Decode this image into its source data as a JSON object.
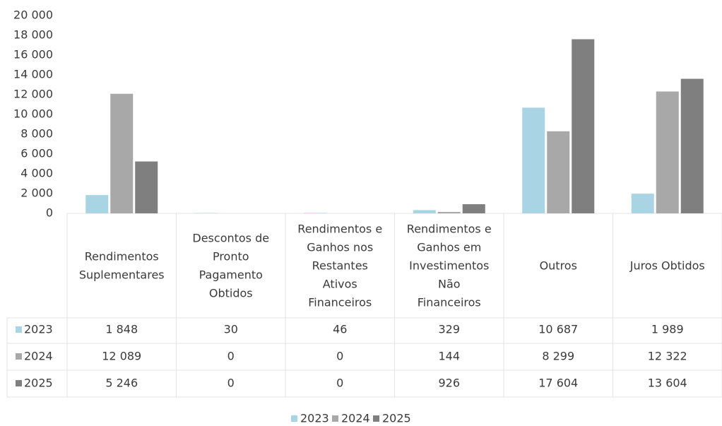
{
  "chart_data": {
    "type": "bar",
    "categories": [
      [
        "Rendimentos",
        "Suplementares"
      ],
      [
        "Descontos de",
        "Pronto",
        "Pagamento",
        "Obtidos"
      ],
      [
        "Rendimentos e",
        "Ganhos nos",
        "Restantes",
        "Ativos",
        "Financeiros"
      ],
      [
        "Rendimentos e",
        "Ganhos em",
        "Investimentos",
        "Não",
        "Financeiros"
      ],
      [
        "Outros"
      ],
      [
        "Juros Obtidos"
      ]
    ],
    "series": [
      {
        "name": "2023",
        "color": "#a9d4e4",
        "values": [
          1848,
          30,
          46,
          329,
          10687,
          1989
        ],
        "value_labels": [
          "1 848",
          "30",
          "46",
          "329",
          "10 687",
          "1 989"
        ]
      },
      {
        "name": "2024",
        "color": "#a8a8a8",
        "values": [
          12089,
          0,
          0,
          144,
          8299,
          12322
        ],
        "value_labels": [
          "12 089",
          "0",
          "0",
          "144",
          "8 299",
          "12 322"
        ]
      },
      {
        "name": "2025",
        "color": "#7f7f7f",
        "values": [
          5246,
          0,
          0,
          926,
          17604,
          13604
        ],
        "value_labels": [
          "5 246",
          "0",
          "0",
          "926",
          "17 604",
          "13 604"
        ]
      }
    ],
    "ylim": [
      0,
      20000
    ],
    "yticks": [
      0,
      {
        "value": 2000,
        "label": "2 000"
      },
      {
        "value": 4000,
        "label": "4 000"
      },
      {
        "value": 6000,
        "label": "6 000"
      },
      {
        "value": 8000,
        "label": "8 000"
      },
      {
        "value": 10000,
        "label": "10 000"
      },
      {
        "value": 12000,
        "label": "12 000"
      },
      {
        "value": 14000,
        "label": "14 000"
      },
      {
        "value": 16000,
        "label": "16 000"
      },
      {
        "value": 18000,
        "label": "18 000"
      },
      {
        "value": 20000,
        "label": "20 000"
      }
    ],
    "legend": "bottom"
  }
}
